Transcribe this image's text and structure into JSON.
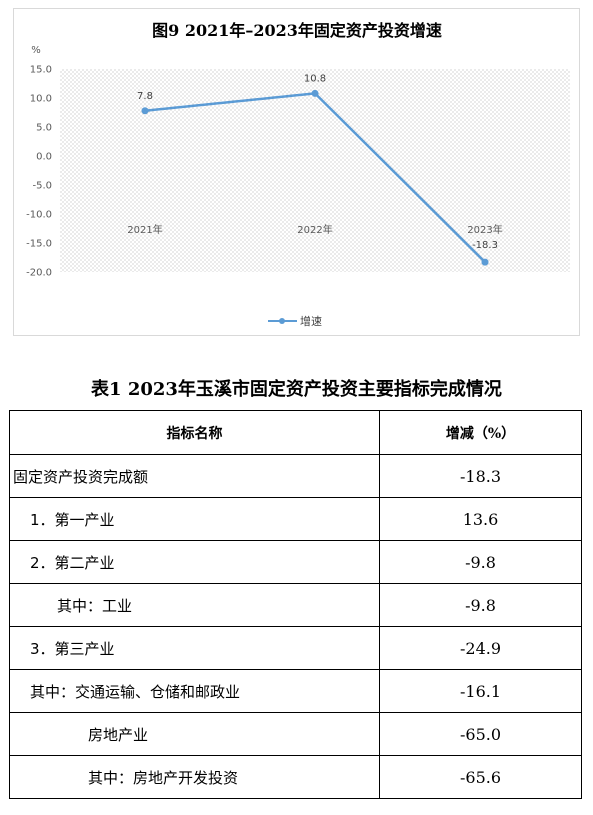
{
  "chart_data": {
    "type": "line",
    "title": "图9  2021年–2023年固定资产投资增速",
    "ylabel": "%",
    "categories": [
      "2021年",
      "2022年",
      "2023年"
    ],
    "series": [
      {
        "name": "增速",
        "values": [
          7.8,
          10.8,
          -18.3
        ],
        "color": "#5b9bd5"
      }
    ],
    "data_labels": [
      "7.8",
      "10.8",
      "-18.3"
    ],
    "yticks": [
      "15.0",
      "10.0",
      "5.0",
      "0.0",
      "-5.0",
      "-10.0",
      "-15.0",
      "-20.0"
    ],
    "ylim": [
      -20,
      15
    ],
    "grid": false,
    "plot_fill": "dotted",
    "legend_position": "bottom"
  },
  "table": {
    "title": "表1    2023年玉溪市固定资产投资主要指标完成情况",
    "headers": {
      "name": "指标名称",
      "value": "增减（%）"
    },
    "rows": [
      {
        "name": "固定资产投资完成额",
        "value": "-18.3",
        "indent": 0
      },
      {
        "name": "1．第一产业",
        "value": "13.6",
        "indent": 1
      },
      {
        "name": "2．第二产业",
        "value": "-9.8",
        "indent": 1
      },
      {
        "name": "其中：工业",
        "value": "-9.8",
        "indent": 2
      },
      {
        "name": "3．第三产业",
        "value": "-24.9",
        "indent": 1
      },
      {
        "name": "其中：交通运输、仓储和邮政业",
        "value": "-16.1",
        "indent": 1
      },
      {
        "name": "房地产业",
        "value": "-65.0",
        "indent": 3
      },
      {
        "name": "其中：房地产开发投资",
        "value": "-65.6",
        "indent": 3
      }
    ]
  }
}
